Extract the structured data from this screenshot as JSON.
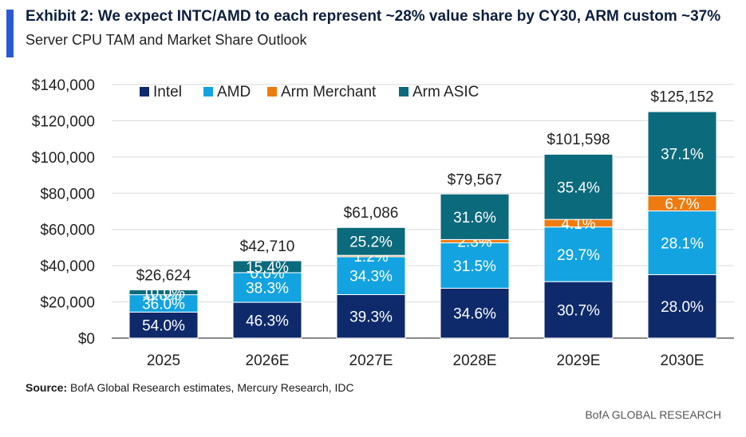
{
  "header": {
    "title": "Exhibit 2: We expect INTC/AMD to each represent ~28% value share by CY30, ARM custom ~37%",
    "subtitle": "Server CPU TAM and Market Share Outlook"
  },
  "footer": {
    "source_label": "Source:",
    "source_text": "BofA Global Research estimates, Mercury Research, IDC",
    "brand": "BofA GLOBAL RESEARCH"
  },
  "colors": {
    "intel": "#0e2a6b",
    "amd": "#13a3e0",
    "arm_merchant": "#ef7b10",
    "arm_asic": "#0b6a7c",
    "accent": "#2a5ad0"
  },
  "chart_data": {
    "type": "bar",
    "stacked": true,
    "categories": [
      "2025",
      "2026E",
      "2027E",
      "2028E",
      "2029E",
      "2030E"
    ],
    "totals": [
      26624,
      42710,
      61086,
      79567,
      101598,
      125152
    ],
    "total_labels": [
      "$26,624",
      "$42,710",
      "$61,086",
      "$79,567",
      "$101,598",
      "$125,152"
    ],
    "series": [
      {
        "name": "Intel",
        "color": "#0e2a6b",
        "shares": [
          54.0,
          46.3,
          39.3,
          34.6,
          30.7,
          28.0
        ],
        "labels": [
          "54.0%",
          "46.3%",
          "39.3%",
          "34.6%",
          "30.7%",
          "28.0%"
        ]
      },
      {
        "name": "AMD",
        "color": "#13a3e0",
        "shares": [
          36.0,
          38.3,
          34.3,
          31.5,
          29.7,
          28.1
        ],
        "labels": [
          "36.0%",
          "38.3%",
          "34.3%",
          "31.5%",
          "29.7%",
          "28.1%"
        ]
      },
      {
        "name": "Arm Merchant",
        "color": "#ef7b10",
        "shares": [
          0.0,
          0.0,
          1.2,
          2.3,
          4.1,
          6.7
        ],
        "labels": [
          "0.0%",
          "0.0%",
          "1.2%",
          "2.3%",
          "4.1%",
          "6.7%"
        ]
      },
      {
        "name": "Arm ASIC",
        "color": "#0b6a7c",
        "shares": [
          10.0,
          15.4,
          25.2,
          31.6,
          35.4,
          37.1
        ],
        "labels": [
          "10.0%",
          "15.4%",
          "25.2%",
          "31.6%",
          "35.4%",
          "37.1%"
        ]
      }
    ],
    "y_ticks": [
      0,
      20000,
      40000,
      60000,
      80000,
      100000,
      120000,
      140000
    ],
    "y_tick_labels": [
      "$0",
      "$20,000",
      "$40,000",
      "$60,000",
      "$80,000",
      "$100,000",
      "$120,000",
      "$140,000"
    ],
    "ylim": [
      0,
      140000
    ],
    "grid": true,
    "legend_position": "top-left"
  }
}
